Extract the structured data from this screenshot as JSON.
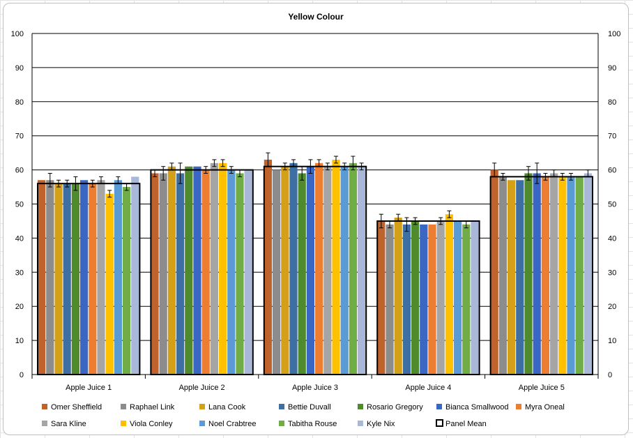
{
  "chart_data": {
    "type": "bar",
    "title": "Yellow Colour",
    "categories": [
      "Apple Juice 1",
      "Apple Juice 2",
      "Apple Juice 3",
      "Apple Juice 4",
      "Apple Juice 5"
    ],
    "ylim": [
      0,
      100
    ],
    "yticks": [
      0,
      10,
      20,
      30,
      40,
      50,
      60,
      70,
      80,
      90,
      100
    ],
    "grid": true,
    "secondary_y_axis": true,
    "legend_position": "bottom",
    "series": [
      {
        "name": "Omer Sheffield",
        "color": "#c0622b",
        "values": [
          57,
          59,
          63,
          45,
          60
        ],
        "errors": [
          0,
          1,
          2,
          2,
          2
        ]
      },
      {
        "name": "Raphael Link",
        "color": "#8c8c8c",
        "values": [
          57,
          59,
          60,
          44,
          58
        ],
        "errors": [
          2,
          2,
          0,
          1,
          1
        ]
      },
      {
        "name": "Lana Cook",
        "color": "#d4a017",
        "values": [
          56,
          61,
          61,
          46,
          57
        ],
        "errors": [
          1,
          1,
          1,
          1,
          0
        ]
      },
      {
        "name": "Bettie Duvall",
        "color": "#3e6fa3",
        "values": [
          56,
          59,
          62,
          44,
          57
        ],
        "errors": [
          1,
          3,
          1,
          2,
          0
        ]
      },
      {
        "name": "Rosario Gregory",
        "color": "#4f8a2c",
        "values": [
          56,
          61,
          59,
          45,
          59
        ],
        "errors": [
          2,
          0,
          2,
          1,
          2
        ]
      },
      {
        "name": "Bianca Smallwood",
        "color": "#3a66c4",
        "values": [
          57,
          61,
          61,
          44,
          59
        ],
        "errors": [
          0,
          0,
          2,
          0,
          3
        ]
      },
      {
        "name": "Myra Oneal",
        "color": "#ed7d31",
        "values": [
          56,
          60,
          62,
          44,
          58
        ],
        "errors": [
          1,
          1,
          1,
          0,
          1
        ]
      },
      {
        "name": "Sara Kline",
        "color": "#a5a5a5",
        "values": [
          57,
          62,
          61,
          45,
          59
        ],
        "errors": [
          1,
          1,
          1,
          1,
          1
        ]
      },
      {
        "name": "Viola Conley",
        "color": "#ffc000",
        "values": [
          53,
          62,
          63,
          47,
          58
        ],
        "errors": [
          1,
          1,
          1,
          1,
          1
        ]
      },
      {
        "name": "Noel Crabtree",
        "color": "#5b9bd5",
        "values": [
          57,
          60,
          61,
          45,
          58
        ],
        "errors": [
          1,
          1,
          1,
          0,
          1
        ]
      },
      {
        "name": "Tabitha Rouse",
        "color": "#70ad47",
        "values": [
          55,
          59,
          62,
          44,
          58
        ],
        "errors": [
          1,
          1,
          2,
          1,
          0
        ]
      },
      {
        "name": "Kyle Nix",
        "color": "#a9b8d8",
        "values": [
          58,
          60,
          61,
          45,
          59
        ],
        "errors": [
          0,
          0,
          1,
          0,
          1
        ]
      }
    ],
    "panel_mean": {
      "name": "Panel Mean",
      "values": [
        56,
        60,
        61,
        45,
        58
      ],
      "style": "black outline box"
    }
  }
}
